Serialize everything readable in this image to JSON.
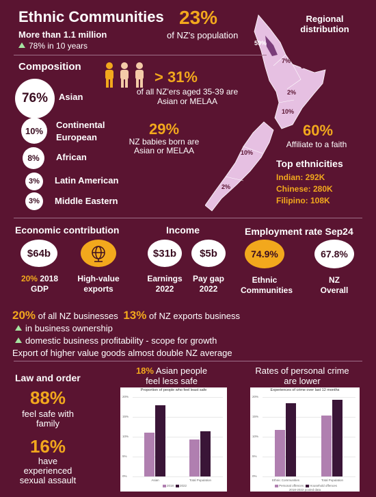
{
  "header": {
    "title": "Ethnic Communities",
    "population": "More than 1.1 million",
    "growth": "78% in 10 years",
    "share_pct": "23%",
    "share_text": "of NZ's population"
  },
  "map": {
    "title_line1": "Regional",
    "title_line2": "distribution",
    "regions": [
      "59%",
      "7%",
      "3%",
      "2%",
      "10%",
      "10%",
      "2%"
    ]
  },
  "composition": {
    "title": "Composition",
    "items": [
      {
        "pct": "76%",
        "label": "Asian"
      },
      {
        "pct": "10%",
        "label": "Continental European"
      },
      {
        "pct": "8%",
        "label": "African"
      },
      {
        "pct": "3%",
        "label": "Latin American"
      },
      {
        "pct": "3%",
        "label": "Middle Eastern"
      }
    ]
  },
  "stats": {
    "aged_value": "> 31%",
    "aged_text": "of all NZ'ers aged 35-39 are Asian or MELAA",
    "babies_value": "29%",
    "babies_text": "NZ babies born are Asian or MELAA",
    "faith_value": "60%",
    "faith_text": "Affiliate to a faith"
  },
  "top_ethnicities": {
    "title": "Top ethnicities",
    "items": [
      "Indian: 292K",
      "Chinese: 280K",
      "Filipino: 108K"
    ]
  },
  "economic": {
    "title": "Economic contribution",
    "gdp_value": "$64b",
    "gdp_pct": "20%",
    "gdp_label": "2018",
    "gdp_label2": "GDP",
    "exports_label": "High-value exports"
  },
  "income": {
    "title": "Income",
    "earnings_value": "$31b",
    "earnings_label": "Earnings 2022",
    "paygap_value": "$5b",
    "paygap_label": "Pay gap 2022"
  },
  "employment": {
    "title": "Employment rate Sep24",
    "ethnic_value": "74.9%",
    "ethnic_label": "Ethnic Communities",
    "nz_value": "67.8%",
    "nz_label": "NZ Overall"
  },
  "business": {
    "pct1": "20%",
    "text1": "of all NZ businesses",
    "pct2": "13%",
    "text2": "of NZ exports business",
    "bullet1": "in business ownership",
    "bullet2": "domestic business profitability - scope for growth",
    "footer": "Export of higher value goods almost double NZ average"
  },
  "law": {
    "title": "Law and order",
    "safe_value": "88%",
    "safe_text": "feel safe with family",
    "assault_value": "16%",
    "assault_text": "have experienced sexual assault"
  },
  "chart_headers": {
    "asian_pct": "18%",
    "asian_text1": "Asian people",
    "asian_text2": "feel less safe",
    "crime_text1": "Rates of personal crime",
    "crime_text2": "are lower"
  },
  "chart_data": [
    {
      "type": "bar",
      "title": "Proportion of people who feel least safe",
      "categories": [
        "Asian",
        "Total Population"
      ],
      "series": [
        {
          "name": "2018",
          "values": [
            11,
            9.3
          ]
        },
        {
          "name": "2022",
          "values": [
            18,
            11.3
          ]
        }
      ],
      "yticks": [
        "0%",
        "5%",
        "10%",
        "15%",
        "20%"
      ],
      "ylim": [
        0,
        20
      ],
      "colors": [
        "#b07fb0",
        "#3a1537"
      ]
    },
    {
      "type": "bar",
      "title": "Experiences of crime over last 12 months",
      "categories": [
        "Ethnic Communities",
        "Total Population"
      ],
      "series": [
        {
          "name": "Personal offences",
          "values": [
            11.8,
            15.4
          ]
        },
        {
          "name": "Household offences",
          "values": [
            18.5,
            19.3
          ]
        }
      ],
      "yticks": [
        "0%",
        "5%",
        "10%",
        "15%",
        "20%"
      ],
      "ylim": [
        0,
        20
      ],
      "note": "2018-2022 pooled data",
      "colors": [
        "#b07fb0",
        "#3a1537"
      ]
    }
  ],
  "icons": {
    "people": "people-icon",
    "globe": "globe-icon"
  },
  "colors": {
    "background": "#5a1431",
    "accent": "#f2a81d",
    "map_fill": "#e6c0e2",
    "green": "#a6e3a1"
  }
}
